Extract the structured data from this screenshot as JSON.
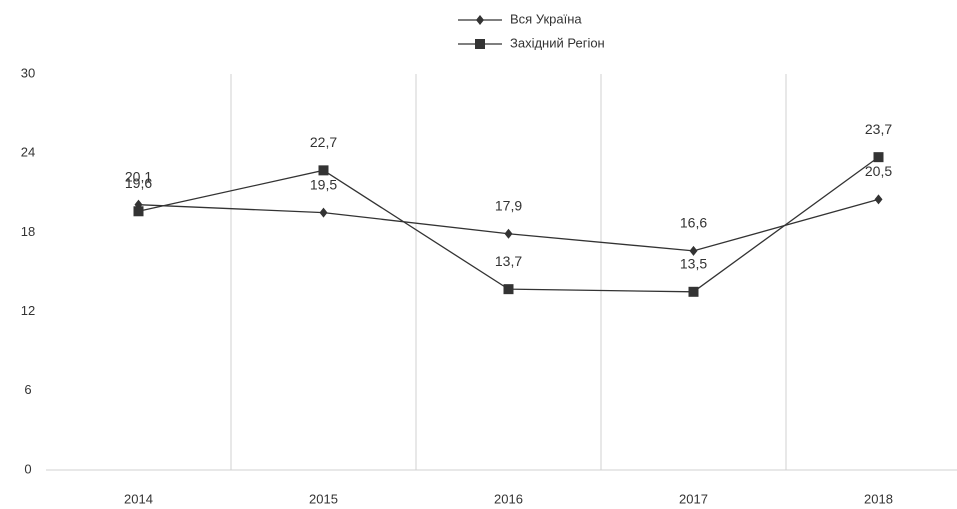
{
  "chart_data": {
    "type": "line",
    "categories": [
      "2014",
      "2015",
      "2016",
      "2017",
      "2018"
    ],
    "series": [
      {
        "name": "Вся Україна",
        "color": "#333333",
        "marker": "diamond",
        "values": [
          20.1,
          19.5,
          17.9,
          16.6,
          20.5
        ],
        "value_labels": [
          "20,1",
          "19,5",
          "17,9",
          "16,6",
          "20,5"
        ]
      },
      {
        "name": "Західний Регіон",
        "color": "#333333",
        "marker": "square",
        "values": [
          19.6,
          22.7,
          13.7,
          13.5,
          23.7
        ],
        "value_labels": [
          "19,6",
          "22,7",
          "13,7",
          "13,5",
          "23,7"
        ]
      }
    ],
    "ylim": [
      0,
      30
    ],
    "yticks": [
      0,
      6,
      12,
      18,
      24,
      30
    ],
    "grid": true,
    "legend": "top"
  }
}
